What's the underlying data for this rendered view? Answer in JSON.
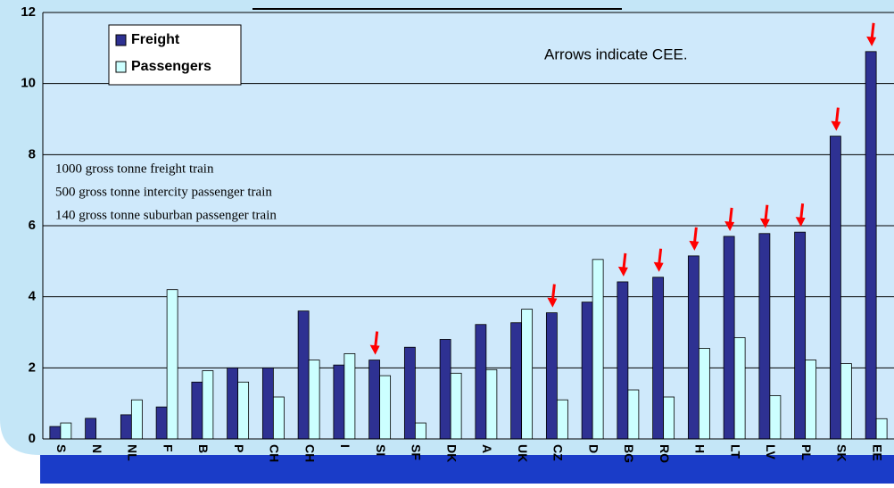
{
  "chart_data": {
    "type": "bar",
    "categories": [
      "S",
      "N",
      "NL",
      "F",
      "B",
      "P",
      "CH",
      "CH",
      "I",
      "SI",
      "SF",
      "DK",
      "A",
      "UK",
      "CZ",
      "D",
      "BG",
      "RO",
      "H",
      "LT",
      "LV",
      "PL",
      "SK",
      "EE"
    ],
    "series": [
      {
        "name": "Freight",
        "color": "#2e3192",
        "values": [
          0.35,
          0.58,
          0.68,
          0.9,
          1.6,
          2.0,
          2.0,
          3.6,
          2.08,
          2.22,
          2.58,
          2.8,
          3.22,
          3.27,
          3.55,
          3.85,
          4.42,
          4.55,
          5.15,
          5.7,
          5.78,
          5.82,
          8.52,
          10.9
        ]
      },
      {
        "name": "Passengers",
        "color": "#ccffff",
        "values": [
          0.45,
          null,
          1.1,
          4.2,
          1.92,
          1.6,
          1.18,
          2.22,
          2.4,
          1.78,
          0.45,
          1.85,
          1.95,
          3.65,
          1.1,
          5.05,
          1.38,
          1.18,
          2.55,
          2.85,
          1.22,
          2.22,
          2.12,
          0.57
        ]
      }
    ],
    "cee": [
      false,
      false,
      false,
      false,
      false,
      false,
      false,
      false,
      false,
      true,
      false,
      false,
      false,
      false,
      true,
      false,
      true,
      true,
      true,
      true,
      true,
      true,
      true,
      true
    ],
    "annotation": "Arrows indicate CEE.",
    "notes": [
      "1000 gross tonne freight train",
      "500 gross tonne intercity passenger train",
      "140 gross tonne suburban passenger train"
    ],
    "ylim": [
      0,
      12
    ],
    "yticks": [
      0,
      2,
      4,
      6,
      8,
      10,
      12
    ],
    "grid": true
  }
}
